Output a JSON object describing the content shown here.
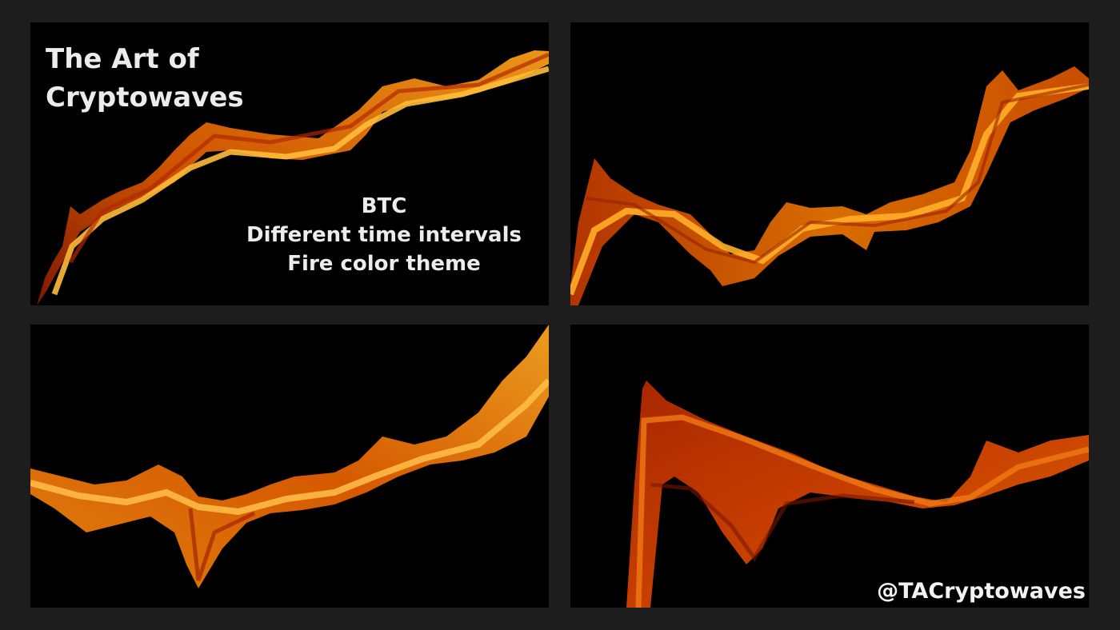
{
  "panels": [
    {
      "title_lines": [
        "The Art of",
        "Cryptowaves"
      ],
      "caption_lines": [
        "BTC",
        "Different time intervals",
        "Fire color theme"
      ]
    },
    {},
    {},
    {
      "handle": "@TACryptowaves"
    }
  ],
  "colors": {
    "page_background": "#1e1d1e",
    "panel_background": "#000000",
    "text": "#ececec",
    "wave_fire": [
      "#7a1500",
      "#c63a00",
      "#f07000",
      "#ffa21a",
      "#ffc24a"
    ]
  }
}
